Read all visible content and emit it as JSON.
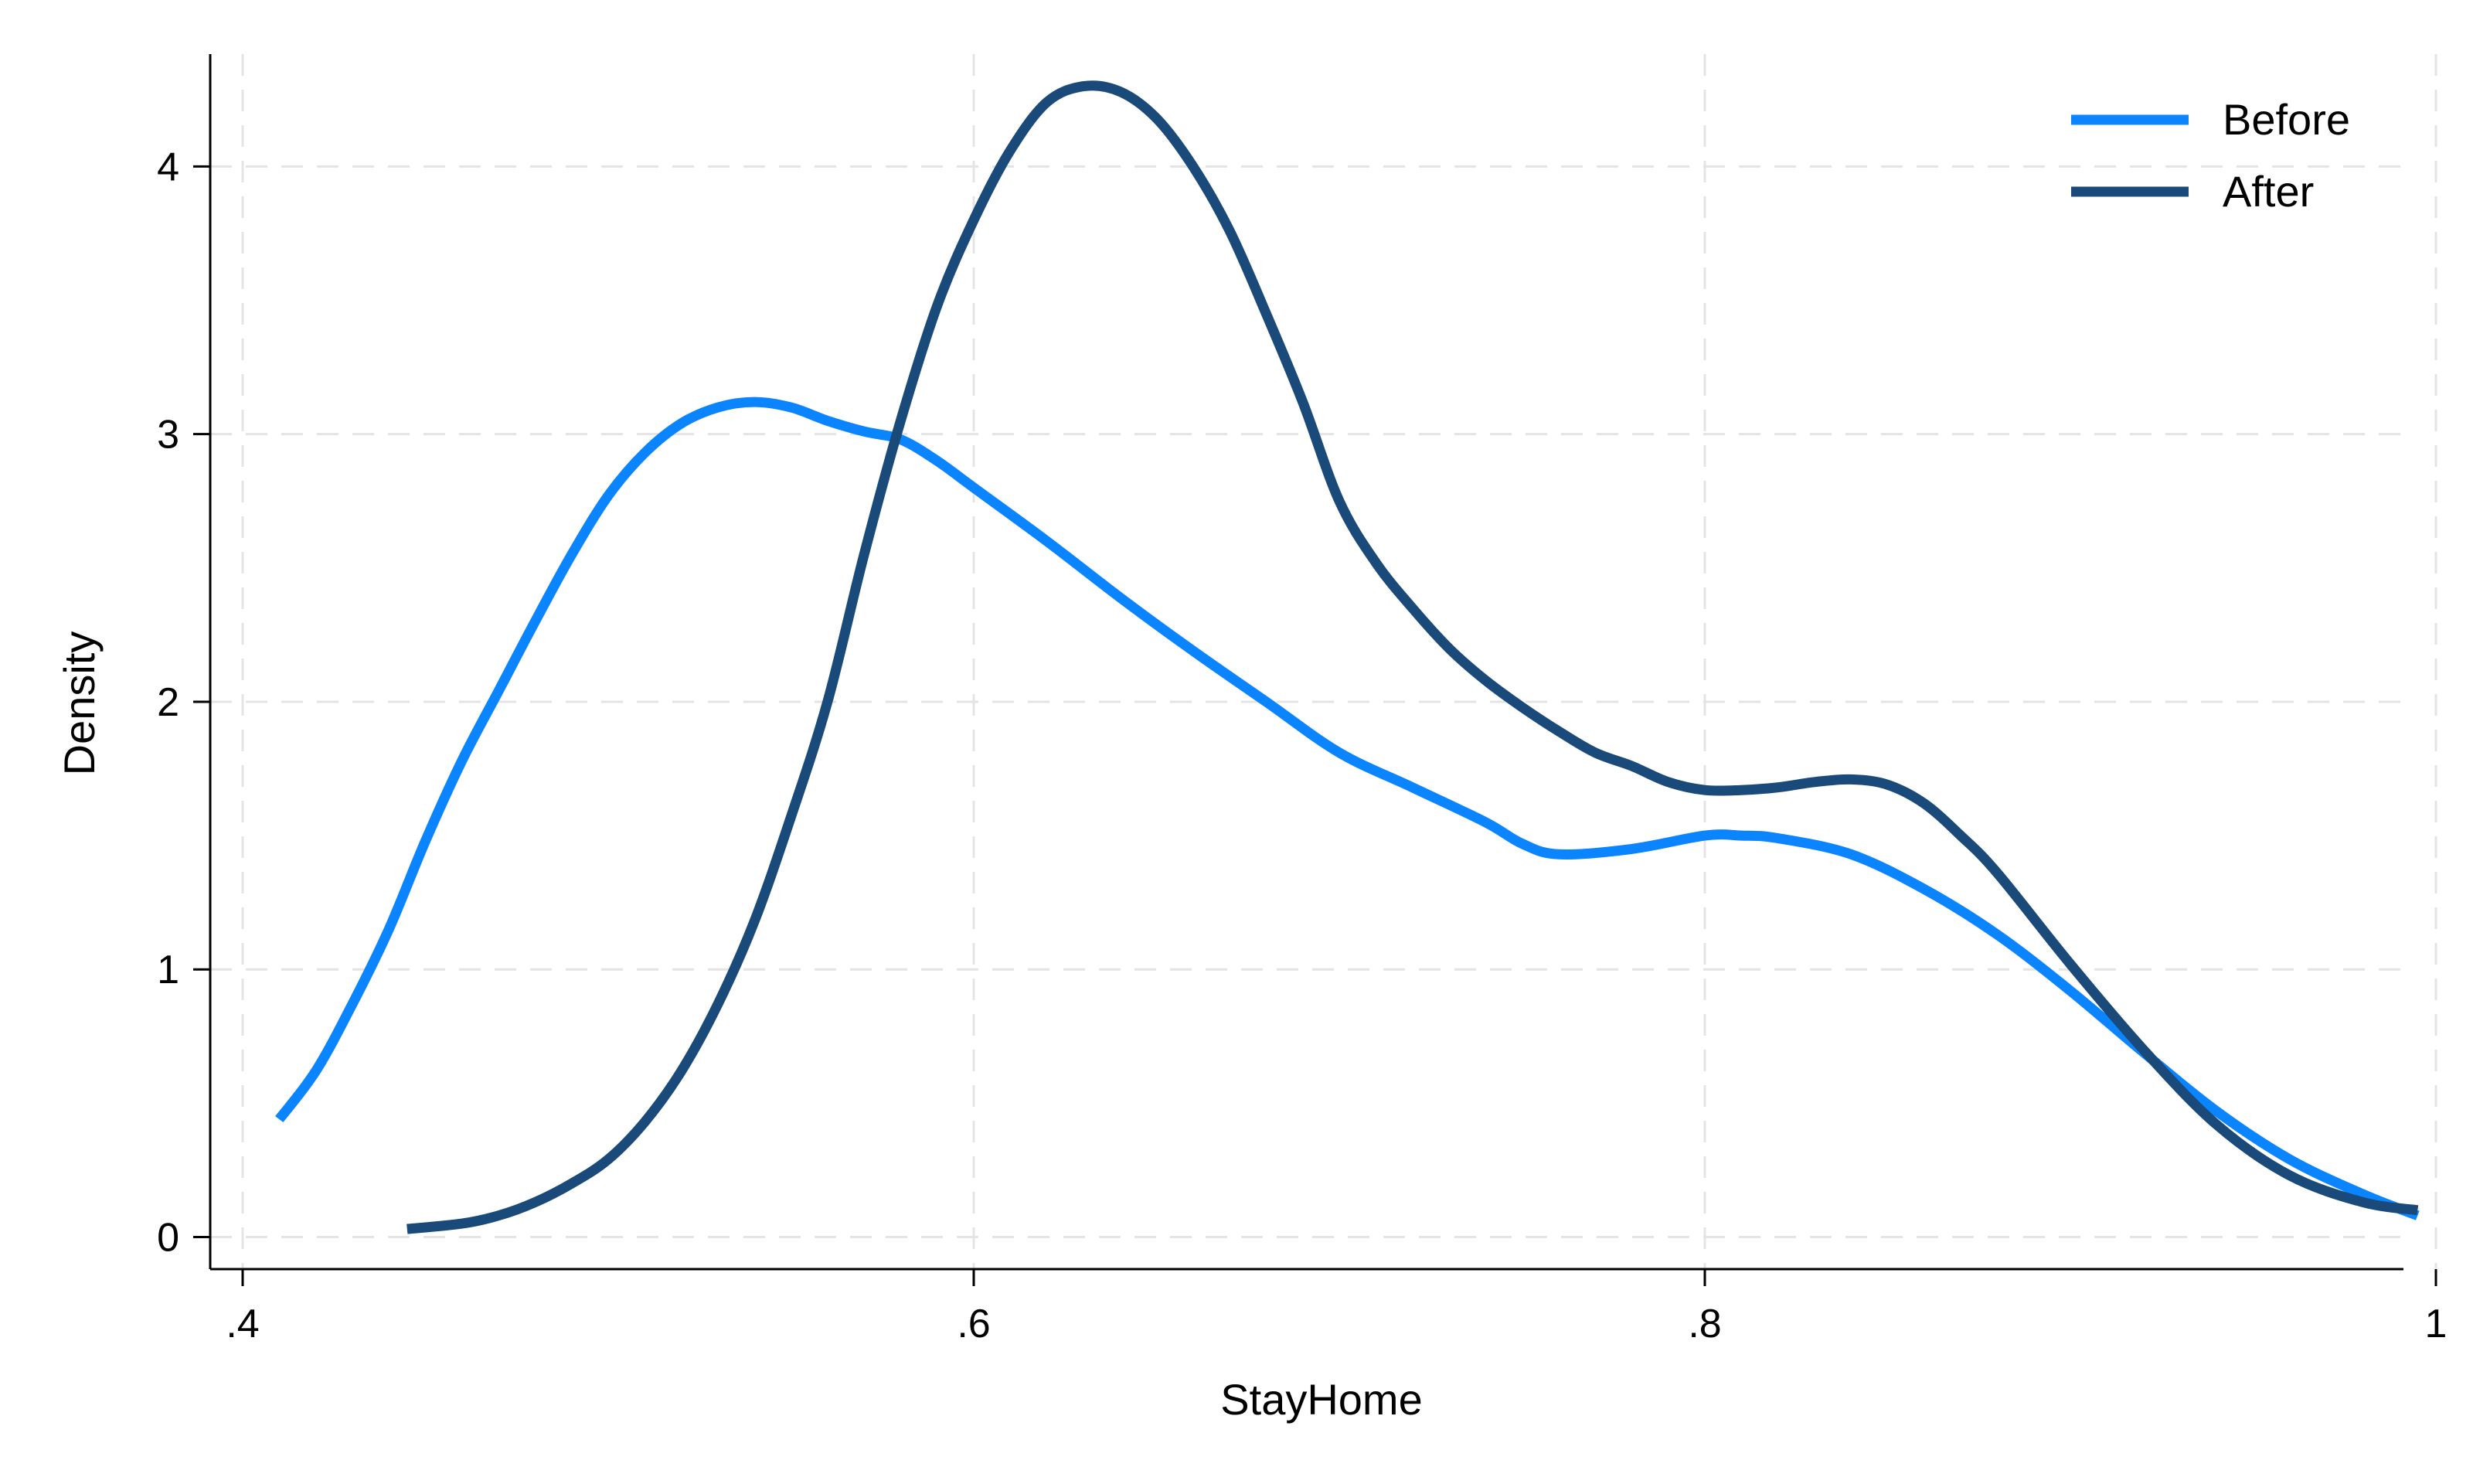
{
  "chart_data": {
    "type": "line",
    "xlabel": "StayHome",
    "ylabel": "Density",
    "xlim": [
      0.4,
      1.0
    ],
    "ylim": [
      -0.12,
      4.42
    ],
    "xticks": [
      {
        "value": 0.4,
        "label": ".4"
      },
      {
        "value": 0.6,
        "label": ".6"
      },
      {
        "value": 0.8,
        "label": ".8"
      },
      {
        "value": 1.0,
        "label": "1"
      }
    ],
    "yticks": [
      {
        "value": 0,
        "label": "0"
      },
      {
        "value": 1,
        "label": "1"
      },
      {
        "value": 2,
        "label": "2"
      },
      {
        "value": 3,
        "label": "3"
      },
      {
        "value": 4,
        "label": "4"
      }
    ],
    "grid": true,
    "legend_position": "top-right",
    "series": [
      {
        "name": "Before",
        "color": "#0a84ff",
        "x": [
          0.41,
          0.42,
          0.43,
          0.44,
          0.45,
          0.46,
          0.47,
          0.48,
          0.49,
          0.5,
          0.51,
          0.52,
          0.53,
          0.54,
          0.55,
          0.56,
          0.57,
          0.58,
          0.59,
          0.6,
          0.62,
          0.64,
          0.66,
          0.68,
          0.7,
          0.72,
          0.74,
          0.75,
          0.76,
          0.78,
          0.8,
          0.81,
          0.82,
          0.84,
          0.86,
          0.88,
          0.9,
          0.92,
          0.94,
          0.96,
          0.98,
          0.995
        ],
        "values": [
          0.44,
          0.62,
          0.87,
          1.15,
          1.48,
          1.78,
          2.04,
          2.3,
          2.55,
          2.77,
          2.93,
          3.04,
          3.1,
          3.12,
          3.1,
          3.05,
          3.01,
          2.98,
          2.9,
          2.8,
          2.6,
          2.39,
          2.19,
          2.0,
          1.81,
          1.68,
          1.55,
          1.47,
          1.43,
          1.45,
          1.5,
          1.5,
          1.49,
          1.43,
          1.3,
          1.13,
          0.92,
          0.69,
          0.47,
          0.29,
          0.16,
          0.08
        ]
      },
      {
        "name": "After",
        "color": "#1a4a7a",
        "x": [
          0.445,
          0.46,
          0.47,
          0.48,
          0.49,
          0.5,
          0.51,
          0.52,
          0.53,
          0.54,
          0.55,
          0.56,
          0.57,
          0.58,
          0.59,
          0.6,
          0.61,
          0.62,
          0.63,
          0.64,
          0.65,
          0.66,
          0.67,
          0.68,
          0.69,
          0.7,
          0.71,
          0.72,
          0.73,
          0.74,
          0.75,
          0.76,
          0.77,
          0.78,
          0.79,
          0.8,
          0.81,
          0.82,
          0.83,
          0.84,
          0.85,
          0.86,
          0.87,
          0.88,
          0.9,
          0.92,
          0.94,
          0.96,
          0.98,
          0.995
        ],
        "values": [
          0.03,
          0.05,
          0.08,
          0.13,
          0.2,
          0.29,
          0.43,
          0.62,
          0.87,
          1.18,
          1.57,
          2.0,
          2.55,
          3.05,
          3.48,
          3.8,
          4.06,
          4.24,
          4.3,
          4.28,
          4.18,
          4.0,
          3.76,
          3.45,
          3.12,
          2.75,
          2.52,
          2.35,
          2.2,
          2.08,
          1.98,
          1.89,
          1.81,
          1.76,
          1.7,
          1.67,
          1.67,
          1.68,
          1.7,
          1.71,
          1.69,
          1.62,
          1.5,
          1.36,
          1.02,
          0.7,
          0.42,
          0.23,
          0.13,
          0.1
        ]
      }
    ]
  }
}
